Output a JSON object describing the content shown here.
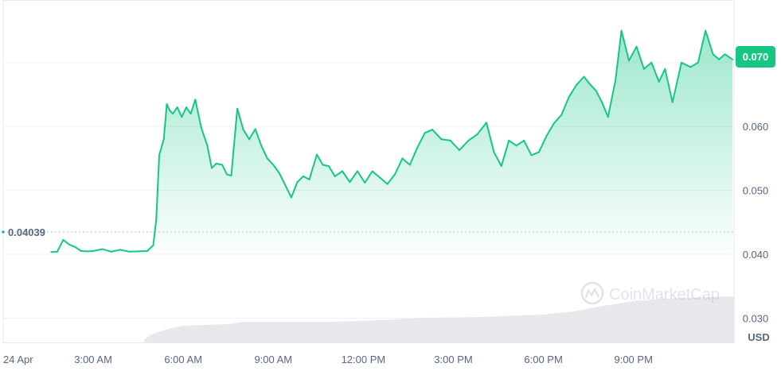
{
  "chart_data": {
    "type": "area",
    "currency_label": "USD",
    "watermark": "CoinMarketCap",
    "baseline_label": "0.04039",
    "current_price_label": "0.070",
    "x_ticks": [
      "24 Apr",
      "3:00 AM",
      "6:00 AM",
      "9:00 AM",
      "12:00 PM",
      "3:00 PM",
      "6:00 PM",
      "9:00 PM"
    ],
    "y_ticks": [
      "0.070",
      "0.060",
      "0.050",
      "0.040",
      "0.030"
    ],
    "y_tick_values": [
      0.07,
      0.06,
      0.05,
      0.04,
      0.03
    ],
    "ylim": [
      0.0262,
      0.0798
    ],
    "xlim_hours": [
      0,
      24.35
    ],
    "baseline": 0.04039,
    "grid": true,
    "series": [
      {
        "x_hours": [
          1.6,
          1.8,
          2.0,
          2.2,
          2.4,
          2.6,
          2.8,
          3.0,
          3.3,
          3.6,
          3.9,
          4.2,
          4.5,
          4.8,
          5.0,
          5.1,
          5.2,
          5.35,
          5.45,
          5.55,
          5.65,
          5.8,
          5.95,
          6.1,
          6.25,
          6.4,
          6.6,
          6.8,
          6.95,
          7.1,
          7.3,
          7.45,
          7.6,
          7.8,
          8.0,
          8.2,
          8.4,
          8.6,
          8.8,
          9.0,
          9.2,
          9.4,
          9.6,
          9.8,
          10.0,
          10.2,
          10.45,
          10.65,
          10.85,
          11.05,
          11.3,
          11.55,
          11.8,
          12.05,
          12.3,
          12.55,
          12.8,
          13.05,
          13.3,
          13.55,
          13.8,
          14.05,
          14.3,
          14.6,
          14.9,
          15.2,
          15.5,
          15.8,
          16.1,
          16.35,
          16.6,
          16.85,
          17.1,
          17.35,
          17.6,
          17.85,
          18.1,
          18.35,
          18.6,
          18.85,
          19.1,
          19.35,
          19.55,
          19.75,
          19.95,
          20.15,
          20.4,
          20.6,
          20.85,
          21.1,
          21.35,
          21.6,
          21.85,
          22.05,
          22.3,
          22.6,
          22.9,
          23.15,
          23.4,
          23.65,
          23.85,
          24.05,
          24.3
        ],
        "values": [
          0.04035,
          0.0404,
          0.04225,
          0.04152,
          0.04113,
          0.0405,
          0.04045,
          0.0405,
          0.0408,
          0.0404,
          0.0407,
          0.0404,
          0.04045,
          0.0405,
          0.0414,
          0.0455,
          0.0555,
          0.058,
          0.0635,
          0.0625,
          0.062,
          0.063,
          0.0615,
          0.063,
          0.062,
          0.0642,
          0.0598,
          0.057,
          0.0535,
          0.0542,
          0.054,
          0.0525,
          0.0523,
          0.0628,
          0.0595,
          0.058,
          0.0596,
          0.057,
          0.055,
          0.054,
          0.0527,
          0.0508,
          0.0489,
          0.0513,
          0.0522,
          0.0517,
          0.0556,
          0.054,
          0.0538,
          0.0522,
          0.053,
          0.0513,
          0.053,
          0.0512,
          0.053,
          0.052,
          0.051,
          0.0525,
          0.055,
          0.054,
          0.0567,
          0.059,
          0.0595,
          0.058,
          0.0578,
          0.0563,
          0.0578,
          0.0588,
          0.0606,
          0.056,
          0.0538,
          0.0578,
          0.057,
          0.0578,
          0.0555,
          0.056,
          0.0585,
          0.0605,
          0.0618,
          0.0646,
          0.0665,
          0.0678,
          0.0666,
          0.0656,
          0.0638,
          0.0615,
          0.0672,
          0.075,
          0.0703,
          0.0725,
          0.069,
          0.07,
          0.067,
          0.069,
          0.0638,
          0.07,
          0.0693,
          0.07,
          0.075,
          0.0713,
          0.0705,
          0.0713,
          0.0705
        ]
      }
    ]
  }
}
